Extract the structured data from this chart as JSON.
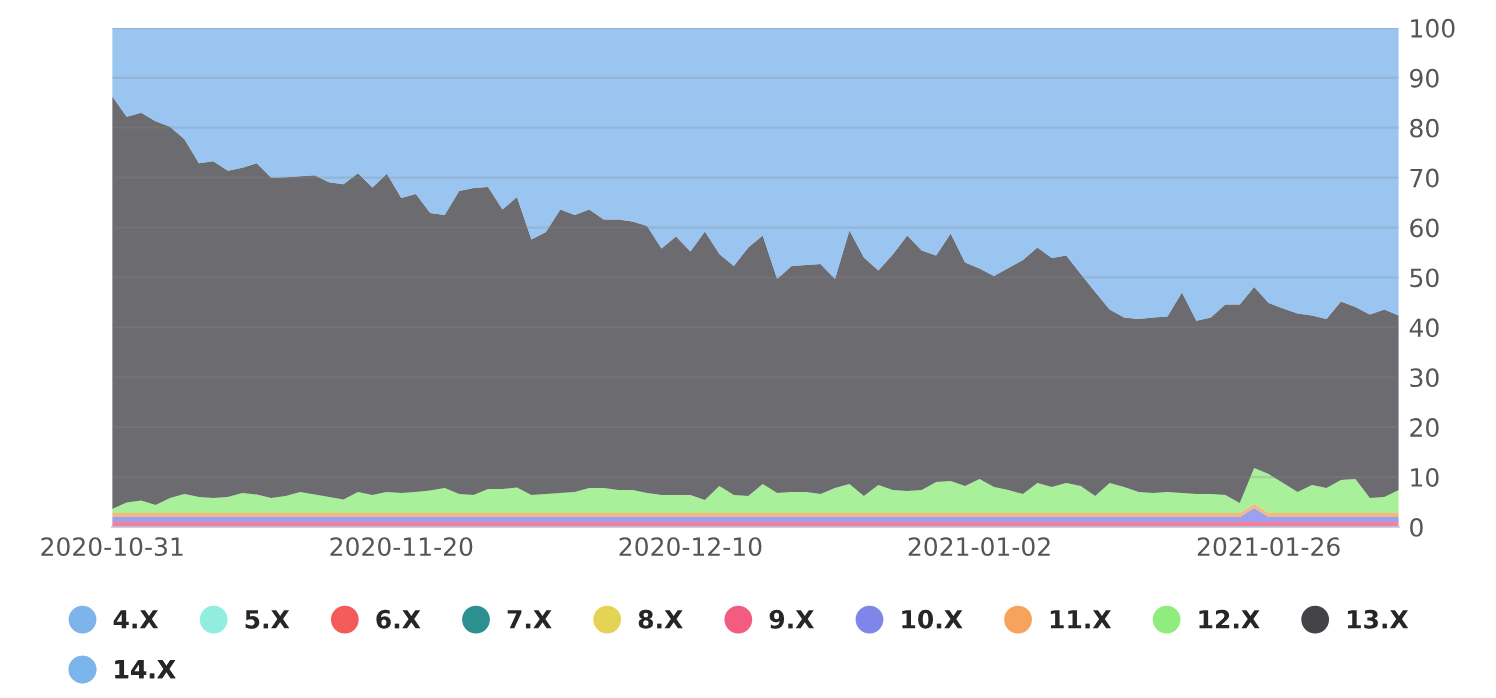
{
  "chart_data": {
    "type": "area",
    "stacked": true,
    "categories": [
      "2020-10-31",
      null,
      null,
      null,
      null,
      null,
      null,
      null,
      null,
      null,
      null,
      null,
      null,
      null,
      null,
      null,
      null,
      null,
      null,
      null,
      "2020-11-20",
      null,
      null,
      null,
      null,
      null,
      null,
      null,
      null,
      null,
      null,
      null,
      null,
      null,
      null,
      null,
      null,
      null,
      null,
      null,
      "2020-12-10",
      null,
      null,
      null,
      null,
      null,
      null,
      null,
      null,
      null,
      null,
      null,
      null,
      null,
      null,
      null,
      null,
      null,
      null,
      null,
      "2021-01-02",
      null,
      null,
      null,
      null,
      null,
      null,
      null,
      null,
      null,
      null,
      null,
      null,
      null,
      null,
      null,
      null,
      null,
      null,
      null,
      "2021-01-26",
      null,
      null,
      null,
      null,
      null,
      null,
      null,
      null,
      null
    ],
    "series": [
      {
        "name": "4.X",
        "color": "#7eb4ea",
        "values": [
          null,
          null,
          null,
          null,
          null,
          null,
          null,
          null,
          null,
          null,
          null,
          null,
          null,
          null,
          null,
          null,
          null,
          null,
          null,
          null,
          null,
          null,
          null,
          null,
          null,
          null,
          null,
          null,
          null,
          null,
          null,
          null,
          null,
          null,
          null,
          null,
          null,
          null,
          null,
          null,
          null,
          null,
          null,
          null,
          null,
          null,
          null,
          null,
          null,
          null,
          null,
          null,
          null,
          null,
          null,
          null,
          null,
          null,
          null,
          null,
          null,
          null,
          null,
          null,
          null,
          null,
          null,
          null,
          null,
          null,
          null,
          null,
          null,
          null,
          null,
          null,
          null,
          null,
          null,
          null,
          null,
          null,
          null,
          null,
          null,
          null,
          null,
          null,
          null,
          null
        ]
      },
      {
        "name": "5.X",
        "color": "#90ede0",
        "values": [
          null,
          null,
          null,
          null,
          null,
          null,
          null,
          null,
          null,
          null,
          null,
          null,
          null,
          null,
          null,
          null,
          null,
          null,
          null,
          null,
          null,
          null,
          null,
          null,
          null,
          null,
          null,
          null,
          null,
          null,
          null,
          null,
          null,
          null,
          null,
          null,
          null,
          null,
          null,
          null,
          null,
          null,
          null,
          null,
          null,
          null,
          null,
          null,
          null,
          null,
          null,
          null,
          null,
          null,
          null,
          null,
          null,
          null,
          null,
          null,
          null,
          null,
          null,
          null,
          null,
          null,
          null,
          null,
          null,
          null,
          null,
          null,
          null,
          null,
          null,
          null,
          null,
          null,
          null,
          null,
          null,
          null,
          null,
          null,
          null,
          null,
          null,
          null,
          null,
          null
        ]
      },
      {
        "name": "6.X",
        "color": "#f45b5b",
        "values": [
          null,
          null,
          null,
          null,
          null,
          null,
          null,
          null,
          null,
          null,
          null,
          null,
          null,
          null,
          null,
          null,
          null,
          null,
          null,
          null,
          null,
          null,
          null,
          null,
          null,
          null,
          null,
          null,
          null,
          null,
          null,
          null,
          null,
          null,
          null,
          null,
          null,
          null,
          null,
          null,
          null,
          null,
          null,
          null,
          null,
          null,
          null,
          null,
          null,
          null,
          null,
          null,
          null,
          null,
          null,
          null,
          null,
          null,
          null,
          null,
          null,
          null,
          null,
          null,
          null,
          null,
          null,
          null,
          null,
          null,
          null,
          null,
          null,
          null,
          null,
          null,
          null,
          null,
          null,
          null,
          null,
          null,
          null,
          null,
          null,
          null,
          null,
          null,
          null,
          null
        ]
      },
      {
        "name": "7.X",
        "color": "#2b908f",
        "values": [
          null,
          null,
          null,
          null,
          null,
          null,
          null,
          null,
          null,
          null,
          null,
          null,
          null,
          null,
          null,
          null,
          null,
          null,
          null,
          null,
          null,
          null,
          null,
          null,
          null,
          null,
          null,
          null,
          null,
          null,
          null,
          null,
          null,
          null,
          null,
          null,
          null,
          null,
          null,
          null,
          null,
          null,
          null,
          null,
          null,
          null,
          null,
          null,
          null,
          null,
          null,
          null,
          null,
          null,
          null,
          null,
          null,
          null,
          null,
          null,
          null,
          null,
          null,
          null,
          null,
          null,
          null,
          null,
          null,
          null,
          null,
          null,
          null,
          null,
          null,
          null,
          null,
          null,
          null,
          null,
          null,
          null,
          null,
          null,
          null,
          null,
          null,
          null,
          null,
          null
        ]
      },
      {
        "name": "8.X",
        "color": "#e4d354",
        "values": [
          null,
          null,
          null,
          null,
          null,
          null,
          null,
          null,
          null,
          null,
          null,
          null,
          null,
          null,
          null,
          null,
          null,
          null,
          null,
          null,
          null,
          null,
          null,
          null,
          null,
          null,
          null,
          null,
          null,
          null,
          null,
          null,
          null,
          null,
          null,
          null,
          null,
          null,
          null,
          null,
          null,
          null,
          null,
          null,
          null,
          null,
          null,
          null,
          null,
          null,
          null,
          null,
          null,
          null,
          null,
          null,
          null,
          null,
          null,
          null,
          null,
          null,
          null,
          null,
          null,
          null,
          null,
          null,
          null,
          null,
          null,
          null,
          null,
          null,
          null,
          null,
          null,
          null,
          null,
          null,
          null,
          null,
          null,
          null,
          null,
          null,
          null,
          null,
          null,
          null
        ]
      },
      {
        "name": "9.X",
        "color": "#f15c80",
        "values": [
          1.0,
          1.0,
          1.0,
          1.0,
          1.0,
          1.0,
          1.0,
          1.0,
          1.0,
          1.0,
          1.0,
          1.0,
          1.0,
          1.0,
          1.0,
          1.0,
          1.0,
          1.0,
          1.0,
          1.0,
          1.0,
          1.0,
          1.0,
          1.0,
          1.0,
          1.0,
          1.0,
          1.0,
          1.0,
          1.0,
          1.0,
          1.0,
          1.0,
          1.0,
          1.0,
          1.0,
          1.0,
          1.0,
          1.0,
          1.0,
          1.0,
          1.0,
          1.0,
          1.0,
          1.0,
          1.0,
          1.0,
          1.0,
          1.0,
          1.0,
          1.0,
          1.0,
          1.0,
          1.0,
          1.0,
          1.0,
          1.0,
          1.0,
          1.0,
          1.0,
          1.0,
          1.0,
          1.0,
          1.0,
          1.0,
          1.0,
          1.0,
          1.0,
          1.0,
          1.0,
          1.0,
          1.0,
          1.0,
          1.0,
          1.0,
          1.0,
          1.0,
          1.0,
          1.0,
          1.0,
          1.0,
          1.0,
          1.0,
          1.0,
          1.0,
          1.0,
          1.0,
          1.0,
          1.0,
          1.0
        ]
      },
      {
        "name": "10.X",
        "color": "#8085e9",
        "values": [
          1.0,
          1.0,
          1.0,
          1.0,
          1.0,
          1.0,
          1.0,
          1.0,
          1.0,
          1.0,
          1.0,
          1.0,
          1.0,
          1.0,
          1.0,
          1.0,
          1.0,
          1.0,
          1.0,
          1.0,
          1.0,
          1.0,
          1.0,
          1.0,
          1.0,
          1.0,
          1.0,
          1.0,
          1.0,
          1.0,
          1.0,
          1.0,
          1.0,
          1.0,
          1.0,
          1.0,
          1.0,
          1.0,
          1.0,
          1.0,
          1.0,
          1.0,
          1.0,
          1.0,
          1.0,
          1.0,
          1.0,
          1.0,
          1.0,
          1.0,
          1.0,
          1.0,
          1.0,
          1.0,
          1.0,
          1.0,
          1.0,
          1.0,
          1.0,
          1.0,
          1.0,
          1.0,
          1.0,
          1.0,
          1.0,
          1.0,
          1.0,
          1.0,
          1.0,
          1.0,
          1.0,
          1.0,
          1.0,
          1.0,
          1.0,
          1.0,
          1.0,
          1.0,
          1.0,
          2.8,
          1.0,
          1.0,
          1.0,
          1.0,
          1.0,
          1.0,
          1.0,
          1.0,
          1.0,
          1.0
        ]
      },
      {
        "name": "11.X",
        "color": "#f7a35c",
        "values": [
          0.8,
          0.8,
          0.8,
          0.8,
          0.8,
          0.8,
          0.8,
          0.8,
          0.8,
          0.8,
          0.8,
          0.8,
          0.8,
          0.8,
          0.8,
          0.8,
          0.8,
          0.8,
          0.8,
          0.8,
          0.8,
          0.8,
          0.8,
          0.8,
          0.8,
          0.8,
          0.8,
          0.8,
          0.8,
          0.8,
          0.8,
          0.8,
          0.8,
          0.8,
          0.8,
          0.8,
          0.8,
          0.8,
          0.8,
          0.8,
          0.8,
          0.8,
          0.8,
          0.8,
          0.8,
          0.8,
          0.8,
          0.8,
          0.8,
          0.8,
          0.8,
          0.8,
          0.8,
          0.8,
          0.8,
          0.8,
          0.8,
          0.8,
          0.8,
          0.8,
          0.8,
          0.8,
          0.8,
          0.8,
          0.8,
          0.8,
          0.8,
          0.8,
          0.8,
          0.8,
          0.8,
          0.8,
          0.8,
          0.8,
          0.8,
          0.8,
          0.8,
          0.8,
          0.8,
          0.8,
          0.8,
          0.8,
          0.8,
          0.8,
          0.8,
          0.8,
          0.8,
          0.8,
          0.8,
          0.8
        ]
      },
      {
        "name": "12.X",
        "color": "#90ed7d",
        "values": [
          0.8,
          2.1,
          2.5,
          1.6,
          3.0,
          3.8,
          3.2,
          3.0,
          3.2,
          4.0,
          3.7,
          3.0,
          3.4,
          4.2,
          3.7,
          3.2,
          2.7,
          4.2,
          3.6,
          4.2,
          4.0,
          4.2,
          4.5,
          5.0,
          3.8,
          3.6,
          4.8,
          4.8,
          5.1,
          3.6,
          3.8,
          4.0,
          4.2,
          5.0,
          5.0,
          4.6,
          4.6,
          4.0,
          3.6,
          3.6,
          3.6,
          2.6,
          5.4,
          3.6,
          3.4,
          5.8,
          4.0,
          4.2,
          4.2,
          3.8,
          5.0,
          5.8,
          3.4,
          5.6,
          4.6,
          4.4,
          4.6,
          6.2,
          6.4,
          5.4,
          6.8,
          5.2,
          4.6,
          3.8,
          6.0,
          5.2,
          6.0,
          5.4,
          3.4,
          6.0,
          5.2,
          4.2,
          4.0,
          4.2,
          4.0,
          3.8,
          3.8,
          3.6,
          2.0,
          7.2,
          7.8,
          6.0,
          4.2,
          5.6,
          5.0,
          6.6,
          6.8,
          3.0,
          3.2,
          4.6
        ]
      },
      {
        "name": "13.X",
        "color": "#434348",
        "values": [
          82.7,
          77.3,
          77.7,
          76.9,
          74.4,
          71.1,
          66.9,
          67.5,
          65.4,
          65.2,
          66.4,
          64.2,
          63.9,
          63.3,
          64.0,
          63.1,
          63.2,
          63.9,
          61.6,
          63.8,
          59.1,
          59.7,
          55.6,
          54.7,
          60.7,
          61.5,
          60.5,
          56.0,
          58.2,
          51.2,
          52.5,
          56.8,
          55.5,
          55.8,
          53.8,
          54.2,
          53.8,
          53.5,
          49.4,
          51.8,
          48.8,
          53.8,
          46.5,
          45.9,
          49.8,
          49.8,
          42.9,
          45.3,
          45.5,
          46.1,
          41.9,
          50.8,
          47.8,
          43.0,
          47.2,
          51.2,
          48.0,
          45.4,
          49.6,
          44.8,
          42.2,
          42.3,
          44.5,
          46.9,
          47.2,
          45.9,
          45.6,
          42.5,
          40.9,
          34.8,
          34.0,
          34.7,
          35.2,
          35.2,
          40.2,
          34.7,
          35.4,
          38.2,
          39.8,
          36.3,
          34.3,
          35.0,
          35.8,
          34.0,
          33.9,
          35.8,
          34.5,
          36.8,
          37.6,
          35.0
        ]
      },
      {
        "name": "14.X",
        "color": "#7cb5ec",
        "values": [
          13.7,
          17.8,
          17.0,
          18.7,
          19.8,
          22.3,
          27.1,
          26.7,
          28.6,
          28.0,
          27.1,
          30.0,
          29.9,
          29.7,
          29.5,
          30.9,
          31.3,
          29.1,
          32.0,
          29.2,
          34.1,
          33.3,
          37.1,
          37.5,
          32.7,
          32.1,
          31.9,
          36.4,
          33.9,
          42.4,
          40.9,
          36.4,
          37.5,
          36.4,
          38.4,
          38.4,
          38.8,
          39.7,
          44.2,
          41.8,
          44.8,
          40.8,
          45.3,
          47.7,
          44.0,
          41.6,
          50.3,
          47.7,
          47.5,
          47.3,
          50.3,
          40.6,
          46.0,
          48.6,
          45.4,
          41.6,
          44.6,
          45.6,
          41.2,
          47.0,
          48.2,
          49.7,
          48.1,
          46.5,
          44.0,
          46.1,
          45.6,
          49.3,
          52.9,
          56.4,
          58.0,
          58.3,
          58.0,
          57.8,
          53.0,
          58.7,
          58.0,
          55.4,
          55.4,
          51.9,
          55.1,
          56.2,
          57.2,
          57.6,
          58.3,
          54.8,
          55.9,
          57.4,
          56.4,
          57.6
        ]
      }
    ],
    "ylim": [
      0,
      100
    ],
    "yticks": [
      0,
      10,
      20,
      30,
      40,
      50,
      60,
      70,
      80,
      90,
      100
    ],
    "grid": "y",
    "legend": "bottom"
  }
}
